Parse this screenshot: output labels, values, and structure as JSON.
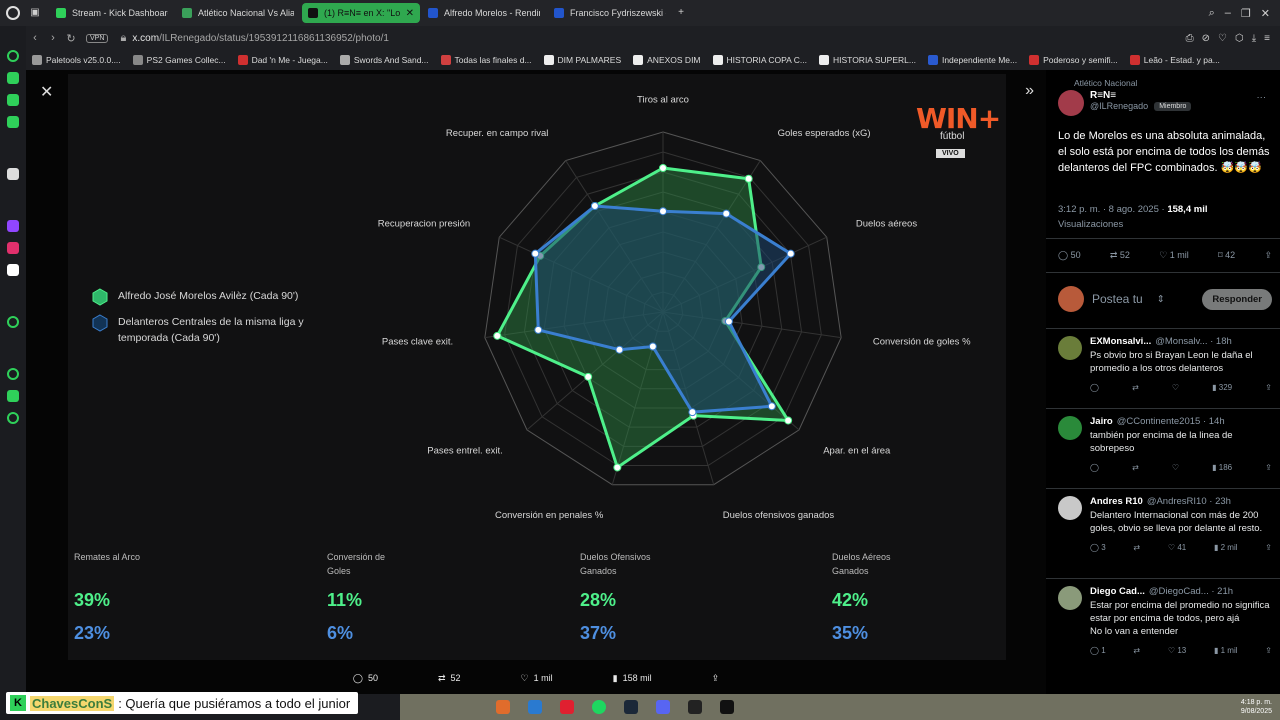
{
  "tabs": [
    {
      "label": "Stream - Kick Dashboard",
      "color": "#2fd05a",
      "active": false
    },
    {
      "label": "Atlético Nacional Vs Alian",
      "color": "#3aa05a",
      "active": false
    },
    {
      "label": "(1) R≡N≡ en X: \"Lo d",
      "color": "#111111",
      "active": true
    },
    {
      "label": "Alfredo Morelos - Rendim",
      "color": "#2255cc",
      "active": false
    },
    {
      "label": "Francisco Fydriszewski -",
      "color": "#2255cc",
      "active": false
    }
  ],
  "address": {
    "vpn": "VPN",
    "url_host": "x.com",
    "url_path": "/ILRenegado/status/1953912116861136952/photo/1"
  },
  "bookmarks": [
    "Paletools v25.0.0....",
    "PS2 Games Collec...",
    "Dad 'n Me - Juega...",
    "Swords And Sand...",
    "Todas las finales d...",
    "DIM PALMARES",
    "ANEXOS DIM",
    "HISTORIA COPA C...",
    "HISTORIA SUPERL...",
    "Independiente Me...",
    "Poderoso y semifi...",
    "Leão - Estad. y pa..."
  ],
  "graphic": {
    "logo_main": "WIN+",
    "logo_sub": "fútbol",
    "logo_live": "VIVO",
    "legend": [
      {
        "label": "Alfredo José Morelos Avilèz (Cada 90')",
        "color": "#4ef08a"
      },
      {
        "label": "Delanteros Centrales de la misma liga y temporada (Cada 90')",
        "color": "#3a7fd0"
      }
    ],
    "bottom_stats": [
      {
        "label": "Remates al Arco",
        "player": "39%",
        "avg": "23%"
      },
      {
        "label": "Conversión de Goles",
        "player": "11%",
        "avg": "6%"
      },
      {
        "label": "Duelos Ofensivos Ganados",
        "player": "28%",
        "avg": "37%"
      },
      {
        "label": "Duelos Aéreos Ganados",
        "player": "42%",
        "avg": "35%"
      }
    ]
  },
  "chart_data": {
    "type": "radar",
    "axes": [
      "Tiros al arco",
      "Goles esperados (xG)",
      "Duelos aéreos",
      "Conversión de goles %",
      "Apar. en el área",
      "Duelos ofensivos ganados",
      "Conversión en penales %",
      "Pases entrel. exit.",
      "Pases clave exit.",
      "Recuperacion presión",
      "Recuper. en campo rival"
    ],
    "series": [
      {
        "name": "Alfredo José Morelos Avilèz (Cada 90')",
        "values": [
          0.8,
          0.88,
          0.6,
          0.35,
          0.92,
          0.6,
          0.9,
          0.55,
          0.93,
          0.75,
          0.7
        ]
      },
      {
        "name": "Delanteros Centrales de la misma liga y temporada (Cada 90')",
        "values": [
          0.56,
          0.65,
          0.78,
          0.37,
          0.8,
          0.58,
          0.2,
          0.32,
          0.7,
          0.78,
          0.7
        ]
      }
    ],
    "range": [
      0,
      1
    ],
    "grid": true
  },
  "viewer_stats": {
    "replies": "50",
    "reposts": "52",
    "likes": "1 mil",
    "views": "158 mil"
  },
  "tweet": {
    "community": "Atlético Nacional",
    "name": "R≡N≡",
    "handle": "@ILRenegado",
    "badge": "Miembro",
    "text": "Lo de Morelos es una absoluta animalada, el solo está por encima de todos los demás delanteros del FPC combinados. 🤯🤯🤯",
    "time": "3:12 p. m. · 8 ago. 2025 ·",
    "views_count": "158,4 mil",
    "views_label": "Visualizaciones",
    "replies": "50",
    "reposts": "52",
    "likes": "1 mil",
    "bookmarks": "42",
    "reply_placeholder": "Postea tu",
    "reply_button": "Responder"
  },
  "replies": [
    {
      "name": "EXMonsalvi...",
      "handle": "@Monsalv... · 18h",
      "text": "Ps obvio bro si Brayan Leon le daña el promedio a los otros delanteros",
      "comments": "",
      "reposts": "",
      "likes": "",
      "views": "329",
      "avatar": "#6a7d3a"
    },
    {
      "name": "Jairo",
      "handle": "@CContinente2015 · 14h",
      "text": "también por encima de la linea de sobrepeso",
      "comments": "",
      "reposts": "",
      "likes": "",
      "views": "186",
      "avatar": "#2a8a3a"
    },
    {
      "name": "Andres R10",
      "handle": "@AndresRI10 · 23h",
      "text": "Delantero Internacional con más de 200 goles, obvio se lleva por delante al resto.",
      "comments": "3",
      "reposts": "",
      "likes": "41",
      "views": "2 mil",
      "avatar": "#c8c8c8"
    },
    {
      "name": "Diego Cad...",
      "handle": "@DiegoCad... · 21h",
      "text": "Estar por encima del promedio no significa estar por encima de todos, pero ajá\nNo lo van a entender",
      "comments": "1",
      "reposts": "",
      "likes": "13",
      "views": "1 mil",
      "avatar": "#8a9a7a"
    }
  ],
  "chat": {
    "user": "ChavesConS",
    "message": ": Quería que pusiéramos a todo el junior"
  },
  "clock": {
    "time": "4:18 p. m.",
    "date": "9/08/2025"
  }
}
